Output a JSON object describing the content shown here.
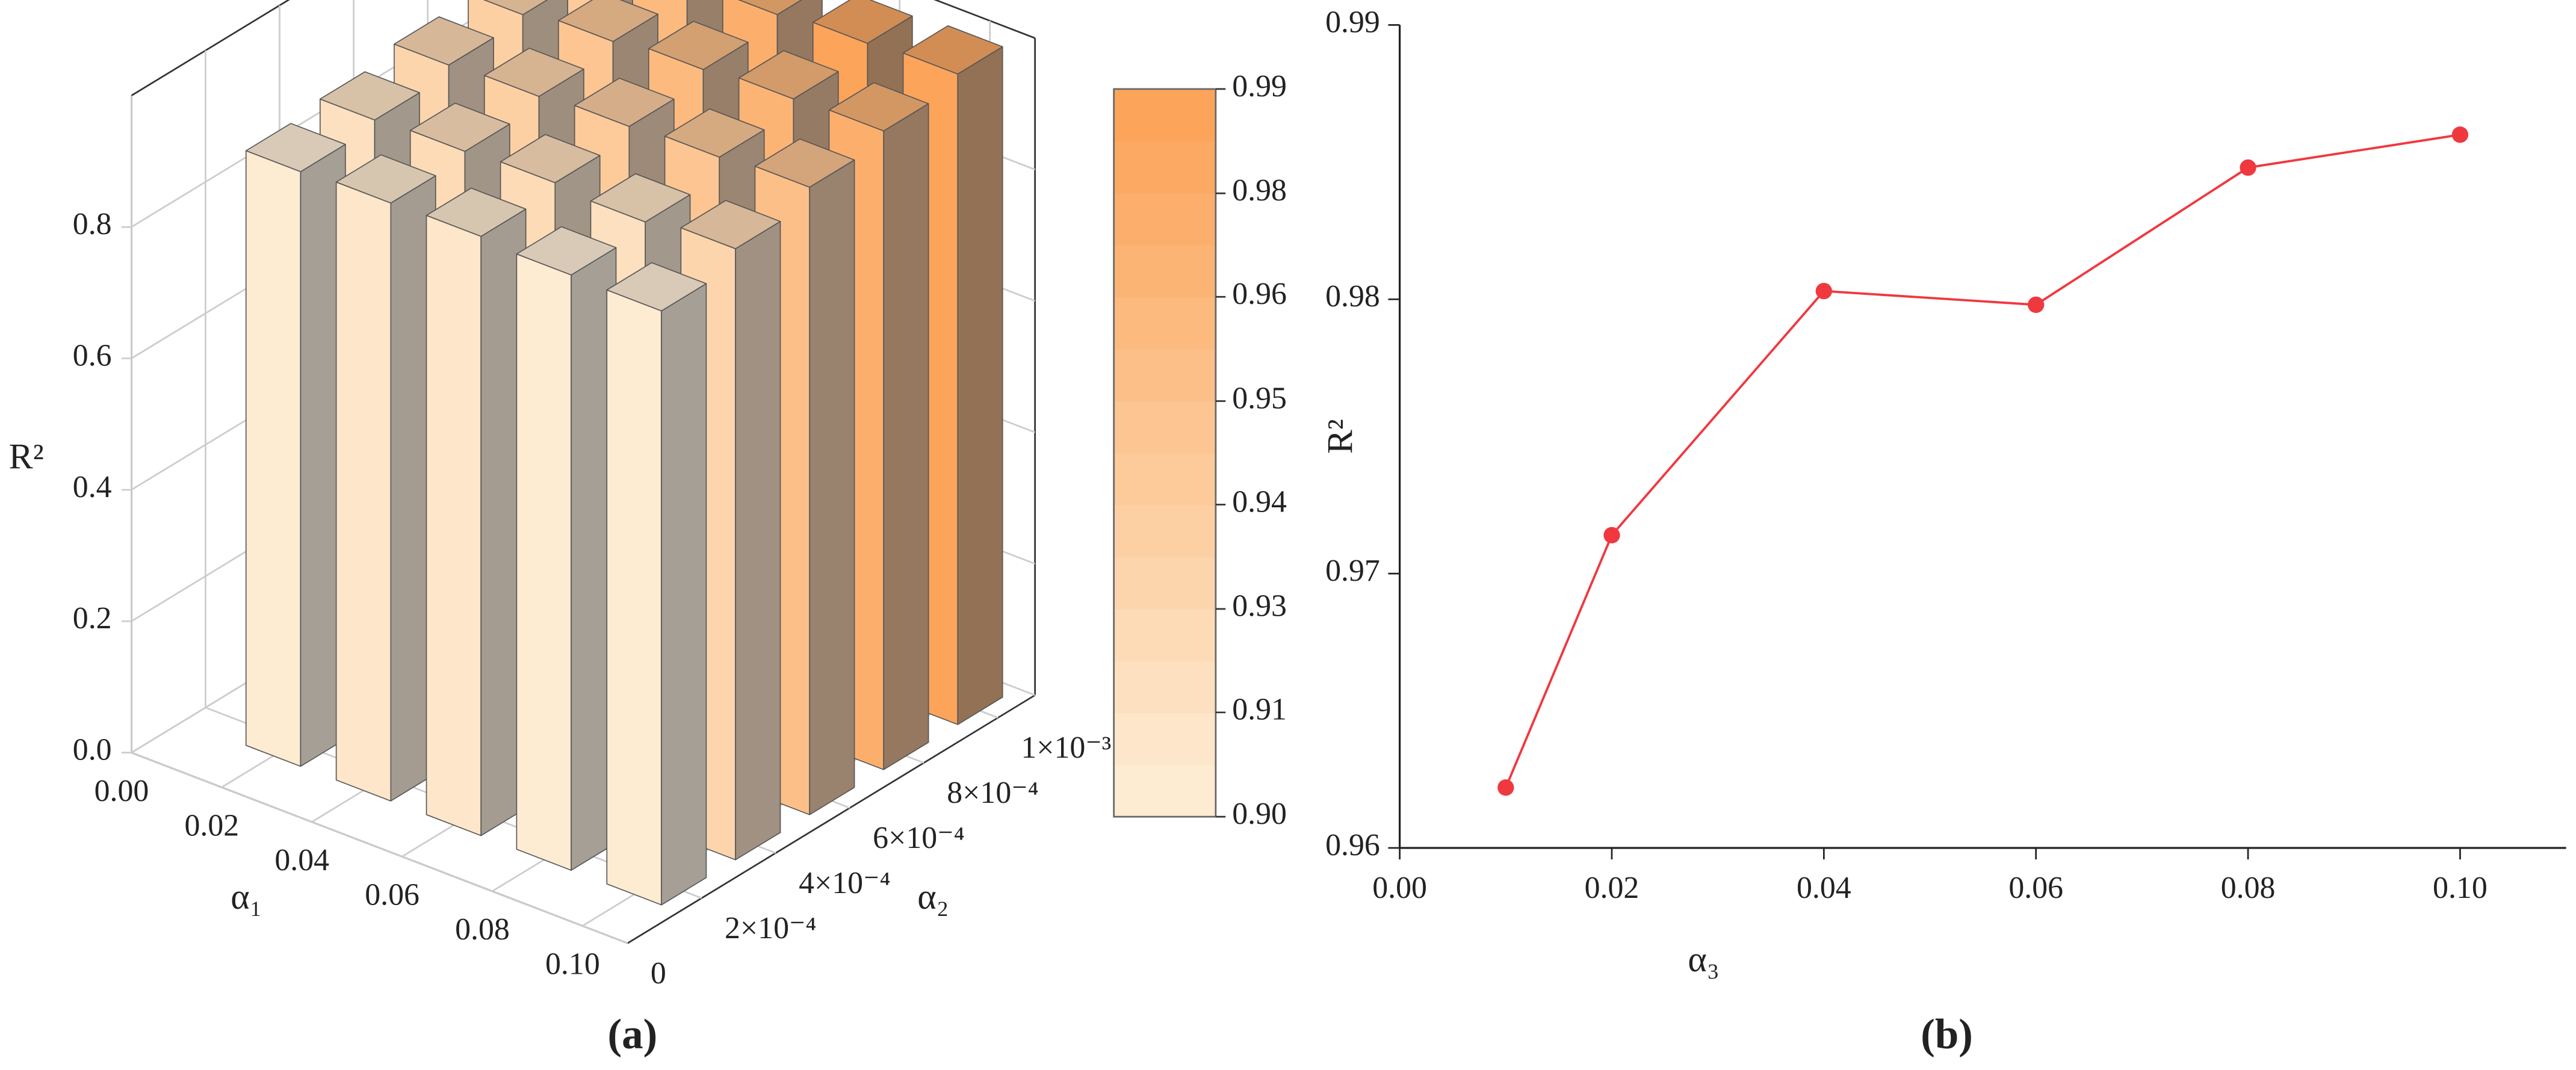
{
  "chart_data": [
    {
      "type": "bar3d",
      "panel_label": "(a)",
      "xlabel": "α₁",
      "ylabel": "α₂",
      "zlabel": "R²",
      "x": [
        0.02,
        0.04,
        0.06,
        0.08,
        0.1
      ],
      "y": [
        0.0002,
        0.0004,
        0.0006,
        0.0008,
        0.001
      ],
      "values": [
        [
          0.905,
          0.91,
          0.912,
          0.906,
          0.904
        ],
        [
          0.915,
          0.92,
          0.925,
          0.918,
          0.93
        ],
        [
          0.93,
          0.935,
          0.942,
          0.948,
          0.955
        ],
        [
          0.938,
          0.95,
          0.96,
          0.968,
          0.972
        ],
        [
          0.945,
          0.962,
          0.975,
          0.984,
          0.99
        ]
      ],
      "xlim": [
        0,
        0.11
      ],
      "xticks": [
        {
          "value": 0,
          "label": "0.00"
        },
        0.02,
        0.04,
        0.06,
        0.08,
        {
          "value": 0.1,
          "label": "0.10"
        }
      ],
      "ylim": [
        0,
        0.0011
      ],
      "yticks": [
        0,
        {
          "value": 0.0002,
          "label": "2×10⁻⁴"
        },
        {
          "value": 0.0004,
          "label": "4×10⁻⁴"
        },
        {
          "value": 0.0006,
          "label": "6×10⁻⁴"
        },
        {
          "value": 0.0008,
          "label": "8×10⁻⁴"
        },
        {
          "value": 0.001,
          "label": "1×10⁻³"
        }
      ],
      "zlim": [
        0,
        1
      ],
      "zticks": [
        {
          "value": 0,
          "label": "0.0"
        },
        0.2,
        0.4,
        0.6,
        0.8
      ],
      "grid": true,
      "colorbar": {
        "lim": [
          0.9,
          0.99
        ],
        "ticks": [
          {
            "value": 0.9,
            "label": "0.90"
          },
          {
            "value": 0.9129,
            "label": "0.91"
          },
          {
            "value": 0.9257,
            "label": "0.93"
          },
          {
            "value": 0.9386,
            "label": "0.94"
          },
          {
            "value": 0.9514,
            "label": "0.95"
          },
          {
            "value": 0.9643,
            "label": "0.96"
          },
          {
            "value": 0.9771,
            "label": "0.98"
          },
          0.99
        ],
        "colors": [
          "#fdebd2",
          "#fde6c9",
          "#fde0bf",
          "#fddbb6",
          "#fdd5ad",
          "#fdd0a4",
          "#fdca9a",
          "#fdc591",
          "#fcbf88",
          "#fcba7e",
          "#fcb475",
          "#fcaf6c",
          "#fca963",
          "#fca45a"
        ]
      }
    },
    {
      "type": "line",
      "panel_label": "(b)",
      "xlabel": "α₃",
      "ylabel": "R²",
      "x": [
        0.01,
        0.02,
        0.04,
        0.06,
        0.08,
        0.1
      ],
      "values": [
        0.9622,
        0.9714,
        0.9803,
        0.9798,
        0.9848,
        0.986
      ],
      "color": "#f0383f",
      "xlim": [
        0,
        0.11
      ],
      "xticks": [
        {
          "value": 0,
          "label": "0.00"
        },
        0.02,
        0.04,
        0.06,
        0.08,
        {
          "value": 0.1,
          "label": "0.10"
        }
      ],
      "ylim": [
        0.96,
        0.99
      ],
      "yticks": [
        0.96,
        0.97,
        0.98,
        0.99
      ]
    }
  ]
}
